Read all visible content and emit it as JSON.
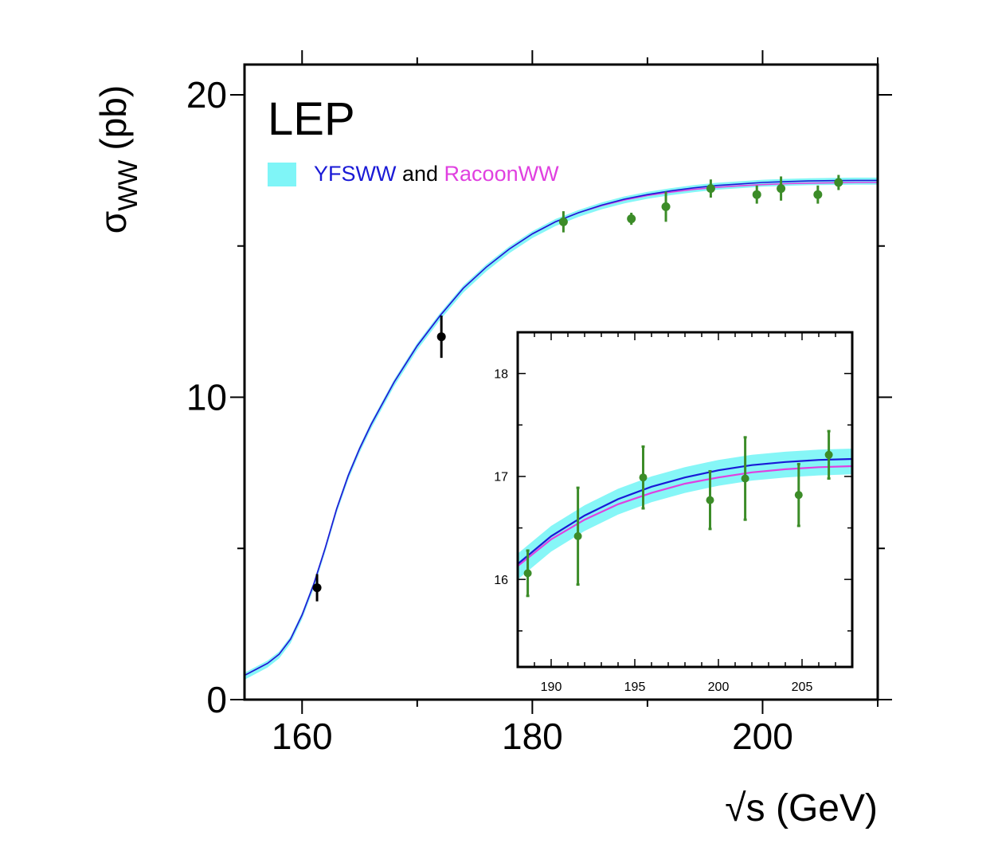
{
  "chart_data": [
    {
      "type": "line",
      "label": "LEP",
      "xlabel": "√s (GeV)",
      "ylabel_main": "σ",
      "ylabel_sub": "WW",
      "ylabel_unit": "(pb)",
      "xlim": [
        155,
        210
      ],
      "ylim": [
        0,
        21
      ],
      "xticks": [
        160,
        180,
        200
      ],
      "yticks": [
        0,
        10,
        20
      ],
      "xtick_labels": [
        "160",
        "180",
        "200"
      ],
      "ytick_labels": [
        "0",
        "10",
        "20"
      ],
      "legend": {
        "position": "upper-left",
        "parts": [
          {
            "text": "YFSWW",
            "color": "#1a1ad6"
          },
          {
            "text": " and ",
            "color": "#000000"
          },
          {
            "text": "RacoonWW",
            "color": "#e040e0"
          }
        ],
        "band_color": "#7ff5f7"
      },
      "series": [
        {
          "name": "YFSWW",
          "color": "#1a1ad6",
          "x": [
            155,
            156,
            157,
            158,
            159,
            160,
            161,
            162,
            163,
            164,
            165,
            166,
            168,
            170,
            172,
            174,
            176,
            178,
            180,
            182,
            184,
            186,
            188,
            190,
            192,
            194,
            196,
            198,
            200,
            202,
            204,
            206,
            208,
            210
          ],
          "y": [
            0.8,
            1.0,
            1.2,
            1.5,
            2.0,
            2.8,
            3.8,
            5.0,
            6.3,
            7.4,
            8.3,
            9.1,
            10.5,
            11.7,
            12.7,
            13.6,
            14.3,
            14.9,
            15.4,
            15.8,
            16.1,
            16.35,
            16.55,
            16.7,
            16.82,
            16.92,
            17.0,
            17.05,
            17.1,
            17.13,
            17.15,
            17.16,
            17.17,
            17.17
          ]
        },
        {
          "name": "RacoonWW",
          "color": "#e040e0",
          "x": [
            155,
            156,
            157,
            158,
            159,
            160,
            161,
            162,
            163,
            164,
            165,
            166,
            168,
            170,
            172,
            174,
            176,
            178,
            180,
            182,
            184,
            186,
            188,
            190,
            192,
            194,
            196,
            198,
            200,
            202,
            204,
            206,
            208,
            210
          ],
          "y": [
            0.8,
            1.0,
            1.2,
            1.5,
            2.0,
            2.8,
            3.8,
            5.0,
            6.3,
            7.4,
            8.3,
            9.1,
            10.5,
            11.7,
            12.7,
            13.6,
            14.3,
            14.9,
            15.4,
            15.8,
            16.1,
            16.33,
            16.52,
            16.67,
            16.78,
            16.87,
            16.94,
            16.99,
            17.03,
            17.06,
            17.08,
            17.09,
            17.1,
            17.1
          ]
        }
      ],
      "band_halfwidth": 0.09,
      "data_points": [
        {
          "x": 161.3,
          "y": 3.7,
          "err": 0.45,
          "color": "#000000"
        },
        {
          "x": 172.1,
          "y": 12.0,
          "err": 0.7,
          "color": "#000000"
        },
        {
          "x": 182.7,
          "y": 15.8,
          "err": 0.35,
          "color": "#3c8c28"
        },
        {
          "x": 188.6,
          "y": 15.9,
          "err": 0.2,
          "color": "#3c8c28"
        },
        {
          "x": 191.6,
          "y": 16.3,
          "err": 0.5,
          "color": "#3c8c28"
        },
        {
          "x": 195.5,
          "y": 16.9,
          "err": 0.3,
          "color": "#3c8c28"
        },
        {
          "x": 199.5,
          "y": 16.7,
          "err": 0.3,
          "color": "#3c8c28"
        },
        {
          "x": 201.6,
          "y": 16.9,
          "err": 0.4,
          "color": "#3c8c28"
        },
        {
          "x": 204.8,
          "y": 16.7,
          "err": 0.3,
          "color": "#3c8c28"
        },
        {
          "x": 206.6,
          "y": 17.1,
          "err": 0.25,
          "color": "#3c8c28"
        }
      ]
    },
    {
      "type": "line",
      "xlim": [
        188,
        208
      ],
      "ylim": [
        15.15,
        18.4
      ],
      "xticks": [
        190,
        195,
        200,
        205
      ],
      "yticks": [
        16,
        17,
        18
      ],
      "xtick_labels": [
        "190",
        "195",
        "200",
        "205"
      ],
      "ytick_labels": [
        "16",
        "17",
        "18"
      ],
      "band_color": "#7ff5f7",
      "band_halfwidth": 0.1,
      "series": [
        {
          "name": "YFSWW",
          "color": "#1a1ad6",
          "x": [
            188,
            190,
            192,
            194,
            196,
            198,
            200,
            202,
            204,
            206,
            208
          ],
          "y": [
            16.15,
            16.42,
            16.62,
            16.78,
            16.9,
            16.99,
            17.06,
            17.11,
            17.14,
            17.16,
            17.17
          ]
        },
        {
          "name": "RacoonWW",
          "color": "#e040e0",
          "x": [
            188,
            190,
            192,
            194,
            196,
            198,
            200,
            202,
            204,
            206,
            208
          ],
          "y": [
            16.13,
            16.39,
            16.58,
            16.73,
            16.84,
            16.93,
            16.99,
            17.04,
            17.07,
            17.09,
            17.1
          ]
        }
      ],
      "data_points": [
        {
          "x": 188.6,
          "y": 16.06,
          "err": 0.22,
          "color": "#3c8c28"
        },
        {
          "x": 191.6,
          "y": 16.42,
          "err": 0.47,
          "color": "#3c8c28"
        },
        {
          "x": 195.5,
          "y": 16.99,
          "err": 0.3,
          "color": "#3c8c28"
        },
        {
          "x": 199.5,
          "y": 16.77,
          "err": 0.28,
          "color": "#3c8c28"
        },
        {
          "x": 201.6,
          "y": 16.98,
          "err": 0.4,
          "color": "#3c8c28"
        },
        {
          "x": 204.8,
          "y": 16.82,
          "err": 0.3,
          "color": "#3c8c28"
        },
        {
          "x": 206.6,
          "y": 17.21,
          "err": 0.23,
          "color": "#3c8c28"
        }
      ]
    }
  ]
}
